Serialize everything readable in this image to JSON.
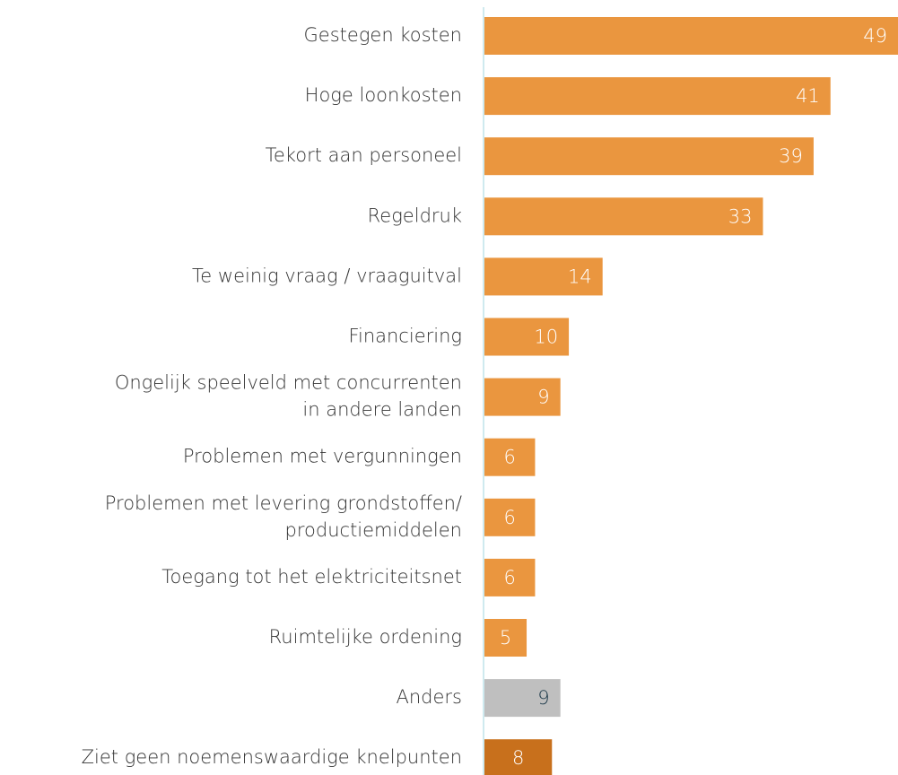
{
  "chart_data": {
    "type": "barh",
    "categories": [
      "Gestegen kosten",
      "Hoge loonkosten",
      "Tekort aan personeel",
      "Regeldruk",
      "Te weinig vraag / vraaguitval",
      "Financiering",
      [
        "Ongelijk speelveld met concurrenten",
        "in andere landen"
      ],
      "Problemen met vergunningen",
      [
        "Problemen met levering grondstoffen/",
        "productiemiddelen"
      ],
      "Toegang tot het elektriciteitsnet",
      "Ruimtelijke ordening",
      "Anders",
      "Ziet geen noemenswaardige knelpunten"
    ],
    "values": [
      49,
      41,
      39,
      33,
      14,
      10,
      9,
      6,
      6,
      6,
      5,
      9,
      8
    ],
    "colors": [
      "#ea963f",
      "#ea963f",
      "#ea963f",
      "#ea963f",
      "#ea963f",
      "#ea963f",
      "#ea963f",
      "#ea963f",
      "#ea963f",
      "#ea963f",
      "#ea963f",
      "#bfbfbf",
      "#c8701c"
    ],
    "value_label_colors": [
      "#ffffff",
      "#ffffff",
      "#ffffff",
      "#ffffff",
      "#ffffff",
      "#ffffff",
      "#ffffff",
      "#ffffff",
      "#ffffff",
      "#ffffff",
      "#ffffff",
      "#1d3a4a",
      "#ffffff"
    ],
    "xlim": [
      0,
      49
    ]
  }
}
